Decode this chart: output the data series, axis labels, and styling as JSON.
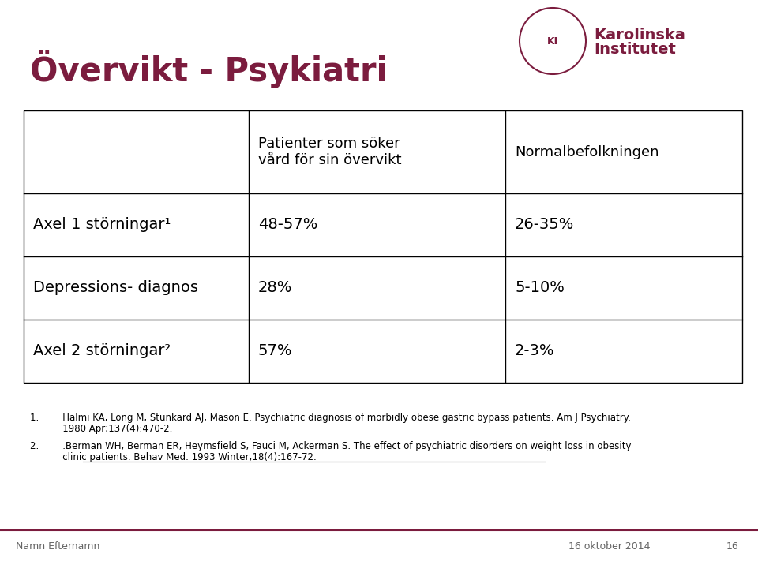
{
  "title": "Övervikt - Psykiatri",
  "title_color": "#7B1C3E",
  "title_fontsize": 30,
  "bg_color": "#FFFFFF",
  "table": {
    "col_headers": [
      "",
      "Patienter som söker\nvård för sin övervikt",
      "Normalbefolkningen"
    ],
    "rows": [
      [
        "Axel 1 störningar¹",
        "48-57%",
        "26-35%"
      ],
      [
        "Depressions- diagnos",
        "28%",
        "5-10%"
      ],
      [
        "Axel 2 störningar²",
        "57%",
        "2-3%"
      ]
    ],
    "text_color": "#000000",
    "border_color": "#000000",
    "header_fontsize": 13,
    "cell_fontsize": 14
  },
  "footnote1_line1": "1.        Halmi KA, Long M, Stunkard AJ, Mason E. Psychiatric diagnosis of morbidly obese gastric bypass patients. Am J Psychiatry.",
  "footnote1_line2": "           1980 Apr;137(4):470-2.",
  "footnote2_line1": "2.        .Berman WH, Berman ER, Heymsfield S, Fauci M, Ackerman S. The effect of psychiatric disorders on weight loss in obesity",
  "footnote2_line2": "           clinic patients. Behav Med. 1993 Winter;18(4):167-72.",
  "footnote_fontsize": 8.5,
  "footnote_color": "#000000",
  "footer_left": "Namn Efternamn",
  "footer_date": "16 oktober 2014",
  "footer_page": "16",
  "footer_color": "#666666",
  "footer_fontsize": 9,
  "separator_color": "#7B1C3E",
  "logo_color": "#7B1C3E",
  "logo_text1": "Karolinska",
  "logo_text2": "Institutet"
}
